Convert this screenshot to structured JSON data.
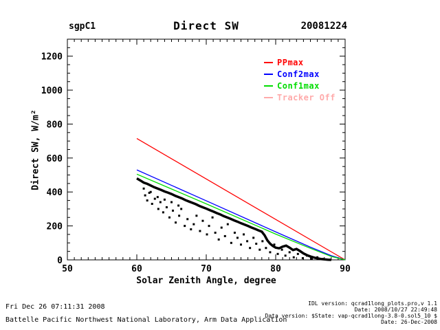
{
  "header": {
    "site_label": "sgpC1",
    "title": "Direct SW",
    "date_label": "20081224"
  },
  "legend": [
    {
      "label": "PPmax",
      "color": "#ff0000"
    },
    {
      "label": "Conf2max",
      "color": "#0000ff"
    },
    {
      "label": "Conf1max",
      "color": "#00dd00"
    },
    {
      "label": "Tracker Off",
      "color": "#ffaaaa"
    }
  ],
  "footer": {
    "timestamp": "Fri Dec 26 07:11:31 2008",
    "organization": "Battelle Pacific Northwest National Laboratory, Arm Data Application",
    "idl_version_line": "IDL version: qcrad1long_plots.pro,v 1.1",
    "idl_date_line": "Date: 2008/10/27 22:49:48",
    "data_version_line": "Data version: $State: vap-qcrad1long-3.8-0.sol5_10 $",
    "data_date_line": "Date: 26-Dec-2008"
  },
  "chart_data": {
    "type": "scatter",
    "title": "Direct SW",
    "subtitle": "sgpC1  20081224",
    "xlabel": "Solar Zenith Angle, degree",
    "ylabel": "Direct SW, W/m²",
    "xlim": [
      50,
      90
    ],
    "ylim": [
      0,
      1300
    ],
    "x_major_ticks": [
      50,
      60,
      70,
      80,
      90
    ],
    "x_minor_step": 1,
    "y_major_ticks": [
      0,
      200,
      400,
      600,
      800,
      1000,
      1200
    ],
    "y_minor_step": 50,
    "grid": false,
    "legend_position": "upper-right-inside",
    "series": [
      {
        "name": "PPmax",
        "type": "line",
        "color": "#ff0000",
        "width": 1.3,
        "points": [
          [
            60,
            715
          ],
          [
            90,
            0
          ]
        ]
      },
      {
        "name": "Conf2max",
        "type": "line",
        "color": "#0000ff",
        "width": 1.3,
        "points": [
          [
            60,
            530
          ],
          [
            70,
            348
          ],
          [
            80,
            165
          ],
          [
            85,
            75
          ],
          [
            88,
            25
          ],
          [
            90,
            0
          ]
        ]
      },
      {
        "name": "Conf1max",
        "type": "line",
        "color": "#00dd00",
        "width": 1.3,
        "points": [
          [
            60,
            505
          ],
          [
            70,
            330
          ],
          [
            80,
            152
          ],
          [
            85,
            68
          ],
          [
            88,
            20
          ],
          [
            90,
            0
          ]
        ]
      },
      {
        "name": "Tracker Off",
        "type": "line",
        "color": "#ffaaaa",
        "width": 1.3,
        "points": []
      },
      {
        "name": "Direct SW measured upper band",
        "type": "line",
        "color": "#000000",
        "width": 3.5,
        "points": [
          [
            60,
            480
          ],
          [
            60.5,
            468
          ],
          [
            61,
            455
          ],
          [
            61.5,
            448
          ],
          [
            62,
            438
          ],
          [
            62.5,
            428
          ],
          [
            63,
            420
          ],
          [
            63.5,
            412
          ],
          [
            64,
            403
          ],
          [
            64.5,
            396
          ],
          [
            65,
            388
          ],
          [
            65.5,
            378
          ],
          [
            66,
            370
          ],
          [
            66.5,
            362
          ],
          [
            67,
            352
          ],
          [
            67.5,
            344
          ],
          [
            68,
            336
          ],
          [
            68.5,
            328
          ],
          [
            69,
            318
          ],
          [
            69.5,
            310
          ],
          [
            70,
            302
          ],
          [
            70.5,
            293
          ],
          [
            71,
            285
          ],
          [
            71.5,
            276
          ],
          [
            72,
            268
          ],
          [
            72.5,
            258
          ],
          [
            73,
            250
          ],
          [
            73.5,
            242
          ],
          [
            74,
            233
          ],
          [
            74.5,
            225
          ],
          [
            75,
            216
          ],
          [
            75.5,
            208
          ],
          [
            76,
            200
          ],
          [
            76.5,
            191
          ],
          [
            77,
            183
          ],
          [
            77.5,
            174
          ],
          [
            78,
            166
          ],
          [
            78.4,
            145
          ],
          [
            78.8,
            115
          ],
          [
            79.2,
            95
          ],
          [
            79.6,
            82
          ],
          [
            80,
            72
          ],
          [
            80.5,
            68
          ],
          [
            81,
            78
          ],
          [
            81.5,
            84
          ],
          [
            82,
            72
          ],
          [
            82.5,
            58
          ],
          [
            83,
            64
          ],
          [
            83.5,
            52
          ],
          [
            84,
            38
          ],
          [
            84.5,
            28
          ],
          [
            85,
            20
          ],
          [
            85.5,
            14
          ],
          [
            86,
            9
          ],
          [
            86.5,
            5
          ],
          [
            87,
            3
          ],
          [
            87.5,
            1
          ],
          [
            88,
            0
          ]
        ]
      },
      {
        "name": "Direct SW measured scatter",
        "type": "scatter",
        "color": "#000000",
        "points": [
          [
            61,
            420
          ],
          [
            61.2,
            380
          ],
          [
            61.5,
            350
          ],
          [
            61.8,
            395
          ],
          [
            62,
            400
          ],
          [
            62.2,
            330
          ],
          [
            62.6,
            360
          ],
          [
            63,
            370
          ],
          [
            63.1,
            300
          ],
          [
            63.4,
            340
          ],
          [
            63.8,
            280
          ],
          [
            64,
            355
          ],
          [
            64.3,
            310
          ],
          [
            64.7,
            250
          ],
          [
            65,
            340
          ],
          [
            65.2,
            290
          ],
          [
            65.6,
            220
          ],
          [
            66,
            320
          ],
          [
            66.1,
            260
          ],
          [
            66.4,
            300
          ],
          [
            66.9,
            200
          ],
          [
            67.3,
            240
          ],
          [
            67.8,
            180
          ],
          [
            68.2,
            210
          ],
          [
            68.6,
            260
          ],
          [
            69.1,
            170
          ],
          [
            69.5,
            230
          ],
          [
            70.1,
            150
          ],
          [
            70.4,
            200
          ],
          [
            70.9,
            250
          ],
          [
            71.3,
            160
          ],
          [
            71.8,
            120
          ],
          [
            72.2,
            190
          ],
          [
            72.7,
            140
          ],
          [
            73.1,
            210
          ],
          [
            73.6,
            100
          ],
          [
            74.1,
            160
          ],
          [
            74.5,
            130
          ],
          [
            75,
            90
          ],
          [
            75.4,
            150
          ],
          [
            75.9,
            110
          ],
          [
            76.3,
            70
          ],
          [
            76.8,
            130
          ],
          [
            77.2,
            95
          ],
          [
            77.7,
            60
          ],
          [
            78.1,
            110
          ],
          [
            78.6,
            70
          ],
          [
            79.2,
            45
          ],
          [
            79.8,
            90
          ],
          [
            80.3,
            35
          ],
          [
            80.9,
            60
          ],
          [
            81.4,
            25
          ],
          [
            82,
            45
          ],
          [
            82.6,
            15
          ],
          [
            83.2,
            35
          ],
          [
            83.9,
            10
          ],
          [
            84.5,
            25
          ],
          [
            85.2,
            8
          ],
          [
            86,
            15
          ],
          [
            86.8,
            5
          ]
        ]
      }
    ]
  }
}
